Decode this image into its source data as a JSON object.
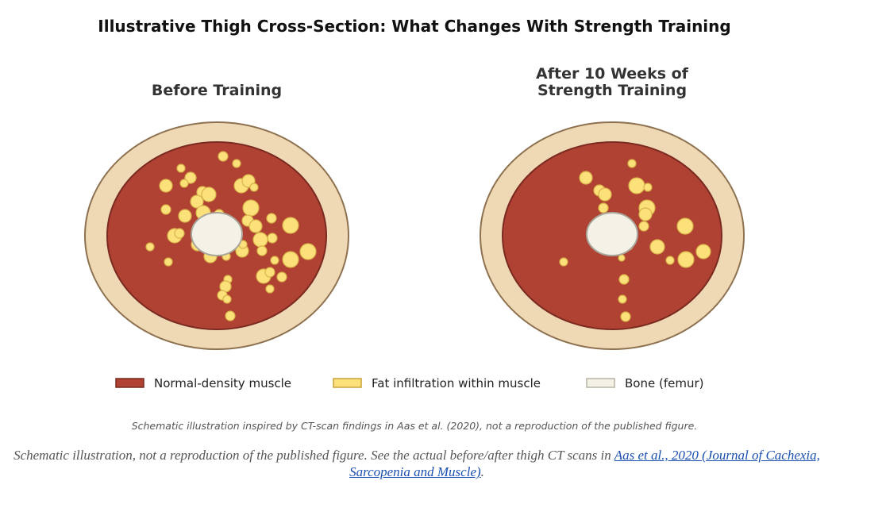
{
  "header": {
    "title": "Illustrative Thigh Cross-Section: What Changes With Strength Training"
  },
  "panels": [
    {
      "title_lines": [
        "Before Training"
      ]
    },
    {
      "title_lines": [
        "After 10 Weeks of",
        "Strength Training"
      ]
    }
  ],
  "legend": [
    {
      "label": "Normal-density muscle",
      "color": "#b04233"
    },
    {
      "label": "Fat infiltration within muscle",
      "color": "#fce07a"
    },
    {
      "label": "Bone (femur)",
      "color": "#f4f1e6"
    }
  ],
  "note": "Schematic illustration inspired by CT-scan findings in Aas et al. (2020), not a reproduction of the published figure.",
  "caption": {
    "text": "Schematic illustration, not a reproduction of the published figure. See the actual before/after thigh CT scans in ",
    "link": "Aas et al., 2020 (Journal of Cachexia, Sarcopenia and Muscle)",
    "suffix": "."
  }
}
